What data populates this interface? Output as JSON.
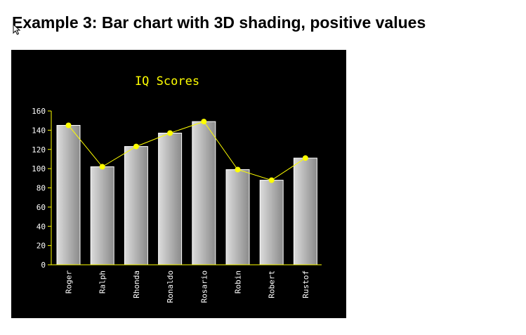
{
  "page": {
    "heading": "Example 3: Bar chart with 3D shading, positive values"
  },
  "colors": {
    "background": "#000000",
    "title": "#ffff00",
    "axis": "#ffff00",
    "tick_text": "#ffffff",
    "line": "#ffff00",
    "marker": "#ffff00",
    "bar_light": "#dcdcdc",
    "bar_dark": "#8a8a8a",
    "bar_outline": "#ffffff"
  },
  "icons": {
    "cursor": "mouse-pointer-icon"
  },
  "chart_data": {
    "type": "bar",
    "title": "IQ Scores",
    "xlabel": "",
    "ylabel": "",
    "categories": [
      "Roger",
      "Ralph",
      "Rhonda",
      "Ronaldo",
      "Rosario",
      "Robin",
      "Robert",
      "Rustof"
    ],
    "series": [
      {
        "values": [
          145,
          102,
          123,
          137,
          149,
          99,
          88,
          111
        ]
      }
    ],
    "overlay_line": {
      "values": [
        145,
        102,
        123,
        137,
        149,
        99,
        88,
        111
      ]
    },
    "ylim": [
      0,
      160
    ],
    "yticks": [
      0,
      20,
      40,
      60,
      80,
      100,
      120,
      140,
      160
    ],
    "bar_style": "3d-shaded",
    "grid": false,
    "legend": "none"
  }
}
